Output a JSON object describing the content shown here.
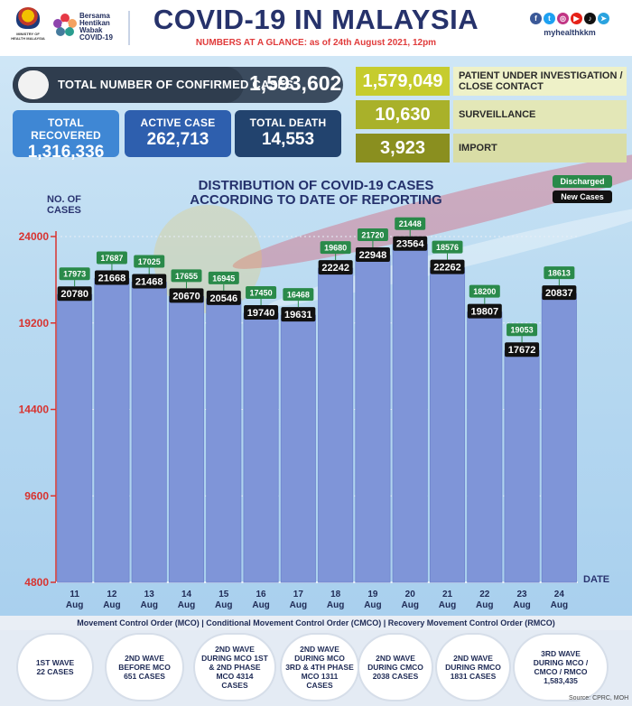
{
  "header": {
    "moh_caption": "MINISTRY OF HEALTH MALAYSIA",
    "campaign": [
      "Bersama",
      "Hentikan",
      "Wabak",
      "COVID-19"
    ],
    "title": "COVID-19 IN MALAYSIA",
    "subtitle": "NUMBERS AT A GLANCE: as of 24th August 2021, 12pm",
    "social_icons": [
      "facebook-icon",
      "twitter-icon",
      "instagram-icon",
      "youtube-icon",
      "tiktok-icon",
      "telegram-icon"
    ],
    "handle": "myhealthkkm"
  },
  "stats": {
    "confirmed_label": "TOTAL NUMBER OF CONFIRMED CASES",
    "confirmed_value": "1,593,602",
    "recovered_label": "TOTAL RECOVERED",
    "recovered_value": "1,316,336",
    "active_label": "ACTIVE CASE",
    "active_value": "262,713",
    "deaths_label": "TOTAL DEATH",
    "deaths_value": "14,553",
    "pui_value": "1,579,049",
    "pui_label": "PATIENT UNDER INVESTIGATION / CLOSE CONTACT",
    "surveillance_value": "10,630",
    "surveillance_label": "SURVEILLANCE",
    "import_value": "3,923",
    "import_label": "IMPORT"
  },
  "chart_data": {
    "type": "bar",
    "title": "DISTRIBUTION OF COVID-19 CASES ACCORDING TO DATE OF REPORTING",
    "ylabel": "NO. OF CASES",
    "xlabel": "DATE",
    "ylim": [
      4800,
      24000
    ],
    "yticks": [
      4800,
      9600,
      14400,
      19200,
      24000
    ],
    "grid": true,
    "legend_position": "top-right",
    "categories": [
      "11 Aug",
      "12 Aug",
      "13 Aug",
      "14 Aug",
      "15 Aug",
      "16 Aug",
      "17 Aug",
      "18 Aug",
      "19 Aug",
      "20 Aug",
      "21 Aug",
      "22 Aug",
      "23 Aug",
      "24 Aug"
    ],
    "series": [
      {
        "name": "New Cases",
        "values": [
          20780,
          21668,
          21468,
          20670,
          20546,
          19740,
          19631,
          22242,
          22948,
          23564,
          22262,
          19807,
          17672,
          20837
        ]
      },
      {
        "name": "Discharged",
        "values": [
          17973,
          17687,
          17025,
          17655,
          16945,
          17450,
          16468,
          19680,
          21720,
          21448,
          18576,
          18200,
          19053,
          18613
        ]
      }
    ],
    "colors": {
      "bar": "#7f95d8",
      "new_label": "#111111",
      "discharged_label": "#2a8a4a",
      "tick": "#d8332f"
    }
  },
  "footer": {
    "mco_text": "Movement Control Order (MCO) | Conditional Movement Control Order (CMCO) | Recovery Movement Control Order (RMCO)",
    "waves": [
      "1ST WAVE\n22 CASES",
      "2ND WAVE\nBEFORE MCO\n651 CASES",
      "2ND WAVE\nDURING MCO 1ST\n& 2ND PHASE\nMCO 4314\nCASES",
      "2ND WAVE\nDURING MCO\n3RD & 4TH PHASE\nMCO 1311\nCASES",
      "2ND WAVE\nDURING CMCO\n2038 CASES",
      "2ND WAVE\nDURING RMCO\n1831 CASES",
      "3RD WAVE\nDURING MCO /\nCMCO / RMCO\n1,583,435"
    ],
    "source": "Source: CPRC, MOH"
  }
}
